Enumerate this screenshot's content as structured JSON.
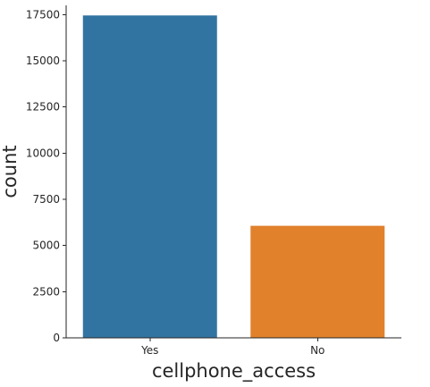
{
  "chart_data": {
    "type": "bar",
    "title": "",
    "xlabel": "cellphone_access",
    "ylabel": "count",
    "categories": [
      "Yes",
      "No"
    ],
    "values": [
      17454,
      6066
    ],
    "colors": [
      "#3274a1",
      "#e1812c"
    ],
    "ylim": [
      0,
      18000
    ],
    "yticks": [
      0,
      2500,
      5000,
      7500,
      10000,
      12500,
      15000,
      17500
    ],
    "ytick_labels": [
      "0",
      "2500",
      "5000",
      "7500",
      "10000",
      "12500",
      "15000",
      "17500"
    ],
    "grid": false,
    "legend": "none"
  }
}
